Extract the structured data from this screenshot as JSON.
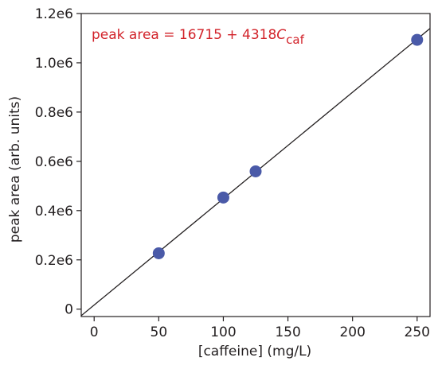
{
  "chart_data": {
    "type": "scatter",
    "title": "",
    "xlabel": "[caffeine] (mg/L)",
    "ylabel": "peak area (arb. units)",
    "xlim": [
      -10,
      260
    ],
    "ylim": [
      -30000,
      1200000
    ],
    "x_ticks": [
      0,
      50,
      100,
      150,
      200,
      250
    ],
    "x_tick_labels": [
      "0",
      "50",
      "100",
      "150",
      "200",
      "250"
    ],
    "y_ticks": [
      0,
      200000,
      400000,
      600000,
      800000,
      1000000,
      1200000
    ],
    "y_tick_labels": [
      "0",
      "0.2e6",
      "0.4e6",
      "0.6e6",
      "0.8e6",
      "1.0e6",
      "1.2e6"
    ],
    "grid": false,
    "series": [
      {
        "points": [
          {
            "x": 50,
            "y": 226724
          },
          {
            "x": 100,
            "y": 453130
          },
          {
            "x": 125,
            "y": 559375
          },
          {
            "x": 250,
            "y": 1093175
          }
        ]
      }
    ],
    "fit_line": {
      "intercept": 16715,
      "slope": 4318
    },
    "annotation": {
      "prefix": "peak area = 16715 + 4318",
      "variable": "C",
      "subscript": "caf"
    },
    "colors": {
      "marker": "#4a5aa8",
      "line": "#231f20",
      "annotation": "#d2232a",
      "axis": "#231f20"
    }
  }
}
